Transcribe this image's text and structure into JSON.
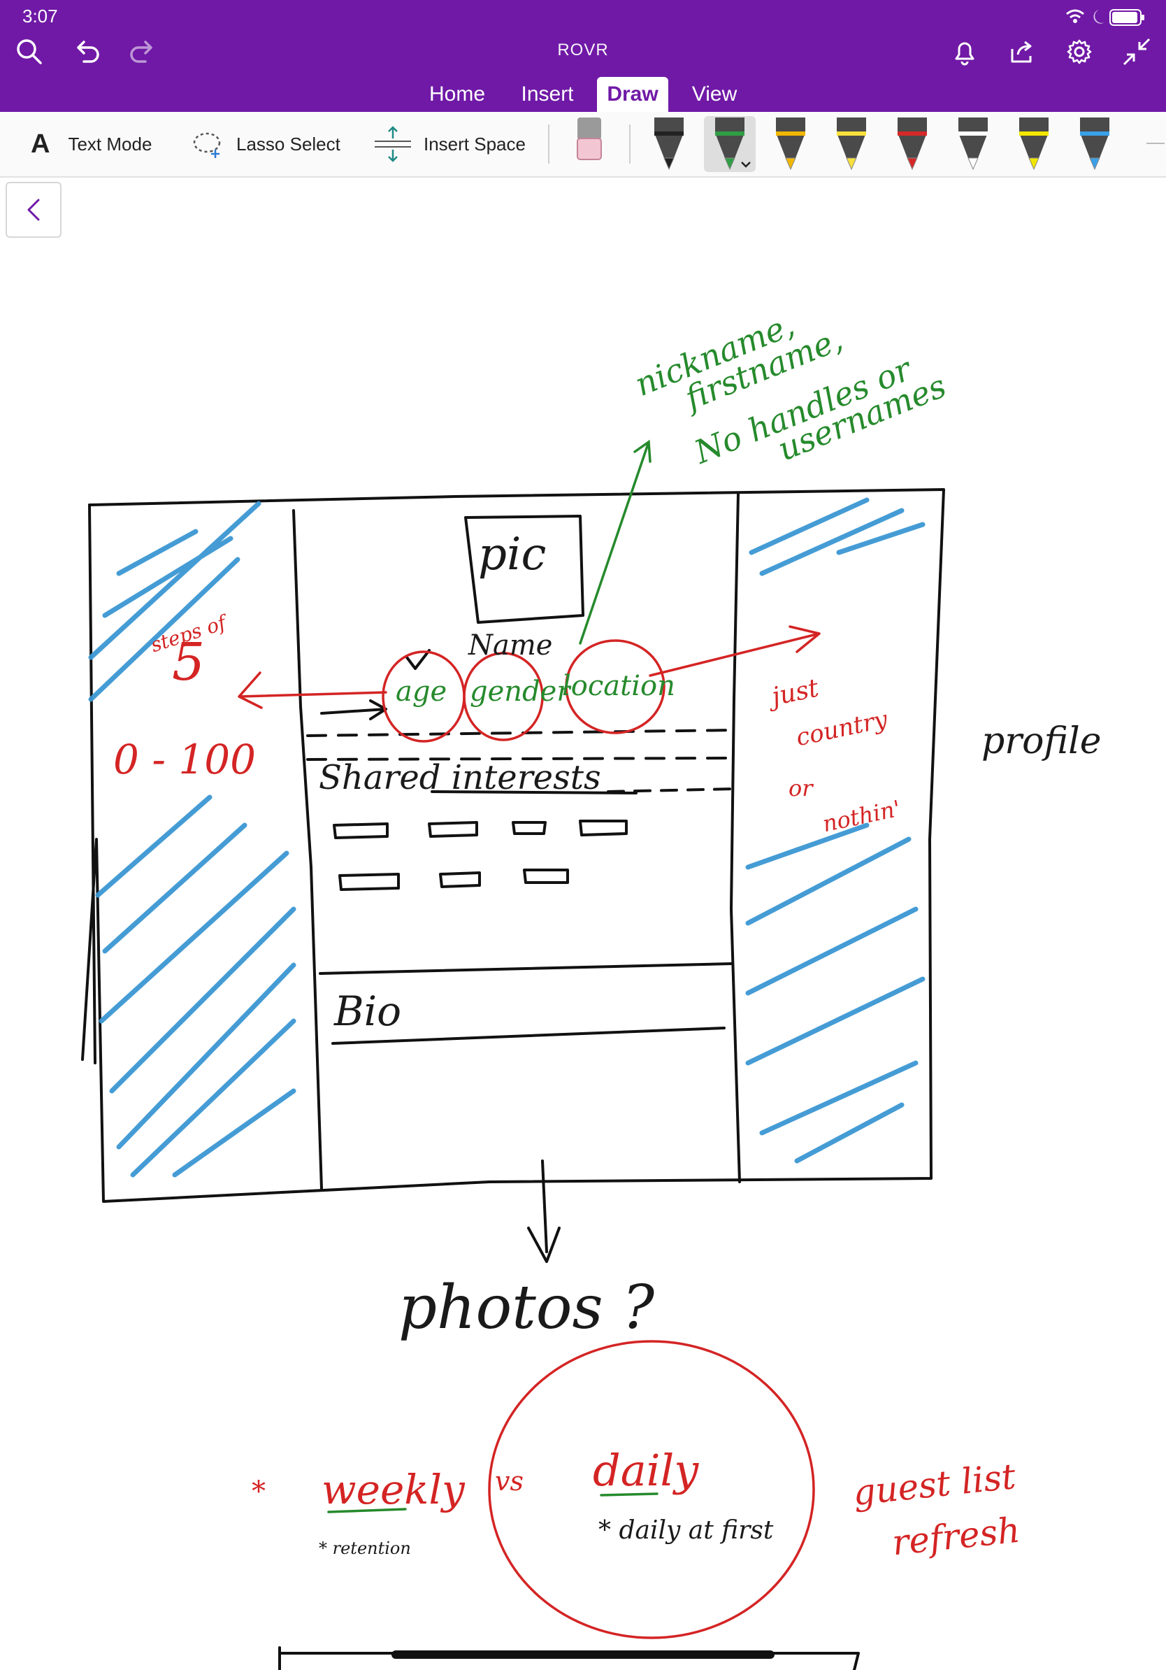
{
  "status": {
    "time": "3:07"
  },
  "app": {
    "title": "ROVR"
  },
  "tabs": [
    "Home",
    "Insert",
    "Draw",
    "View"
  ],
  "ribbon": {
    "text_mode": "Text Mode",
    "lasso_select": "Lasso Select",
    "insert_space": "Insert Space"
  },
  "pens": [
    {
      "color": "#222222"
    },
    {
      "color": "#2f9e44"
    },
    {
      "color": "#f2b705"
    },
    {
      "color": "#f7e03c"
    },
    {
      "color": "#d62828"
    },
    {
      "color": "#ffffff"
    },
    {
      "color": "#f2e600"
    },
    {
      "color": "#3aa0e8"
    }
  ],
  "sketch": {
    "pic": "pic",
    "name": "Name",
    "age": "age",
    "gender": "gender",
    "location": "location",
    "shared_interests": "Shared interests",
    "bio": "Bio",
    "steps": "steps of",
    "five": "5",
    "range": "0 - 100",
    "nickname_1": "nickname,",
    "nickname_2": "firstname,",
    "nickname_3": "No handles or",
    "nickname_4": "usernames",
    "just": "just",
    "country": "country",
    "or": "or",
    "nothin": "nothin'",
    "profile": "profile",
    "photos": "photos ?",
    "weekly": "weekly",
    "retention": "* retention",
    "vs": "vs",
    "daily": "daily",
    "daily_first": "* daily at first",
    "guest_1": "guest list",
    "guest_2": "refresh"
  }
}
